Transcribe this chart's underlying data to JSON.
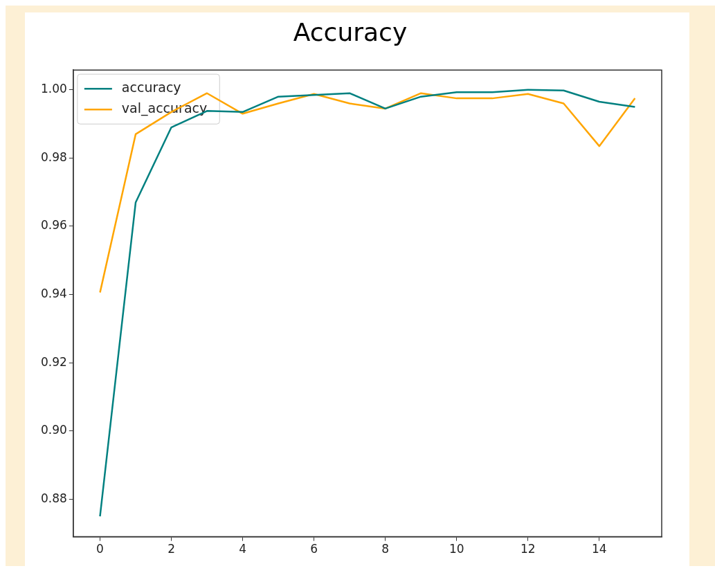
{
  "chart_data": {
    "type": "line",
    "title": "Accuracy",
    "x": [
      0,
      1,
      2,
      3,
      4,
      5,
      6,
      7,
      8,
      9,
      10,
      11,
      12,
      13,
      14,
      15
    ],
    "series": [
      {
        "name": "accuracy",
        "color": "#008080",
        "values": [
          0.875,
          0.967,
          0.989,
          0.9938,
          0.9935,
          0.998,
          0.9985,
          0.999,
          0.9945,
          0.998,
          0.9993,
          0.9993,
          1.0,
          0.9998,
          0.9965,
          0.995
        ]
      },
      {
        "name": "val_accuracy",
        "color": "#ffa500",
        "values": [
          0.9406,
          0.987,
          0.9935,
          0.999,
          0.993,
          0.996,
          0.9988,
          0.996,
          0.9945,
          0.999,
          0.9975,
          0.9975,
          0.9988,
          0.996,
          0.9835,
          0.9975
        ]
      }
    ],
    "xlim": [
      -0.75,
      15.75
    ],
    "xticks": [
      0,
      2,
      4,
      6,
      8,
      10,
      12,
      14
    ],
    "ylim": [
      0.869,
      1.0058
    ],
    "yticks": [
      0.88,
      {
        "value": 0.9,
        "label": "0.90"
      },
      0.92,
      0.94,
      0.96,
      0.98,
      {
        "value": 1.0,
        "label": "1.00"
      }
    ],
    "grid": false,
    "legend": "top left",
    "marker": "none",
    "line_style": "solid"
  }
}
